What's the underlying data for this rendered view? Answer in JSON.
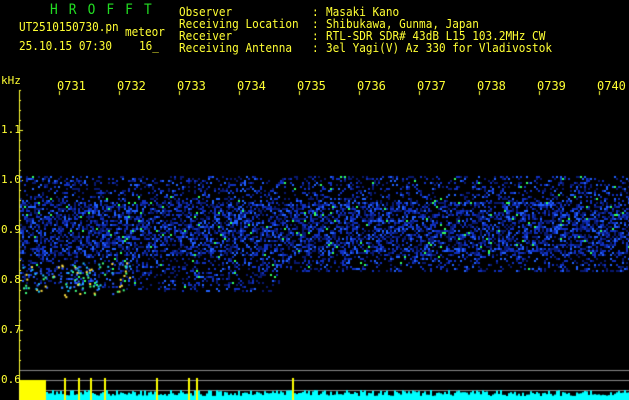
{
  "header": {
    "title": "HROFFT",
    "filename": "UT2510150730.pn",
    "mode": "meteor",
    "datetime": "25.10.15 07:30",
    "extra": "16_"
  },
  "info": [
    {
      "label": "Observer",
      "value": "Masaki Kano"
    },
    {
      "label": "Receiving Location",
      "value": "Shibukawa, Gunma, Japan"
    },
    {
      "label": "Receiver",
      "value": "RTL-SDR SDR# 43dB L15 103.2MHz CW"
    },
    {
      "label": "Receiving Antenna",
      "value": "3el Yagi(V) Az 330 for Vladivostok"
    }
  ],
  "axis": {
    "unit": "kHz",
    "time_ticks": [
      "0731",
      "0732",
      "0733",
      "0734",
      "0735",
      "0736",
      "0737",
      "0738",
      "0739",
      "0740"
    ],
    "freq_ticks": [
      "1.1",
      "1.0",
      "0.9",
      "0.8",
      "0.7",
      "0.6"
    ]
  },
  "colors": {
    "text": "#ffff33",
    "title": "#22dd22",
    "signal": "#2040ff",
    "level": "#00ffff"
  }
}
